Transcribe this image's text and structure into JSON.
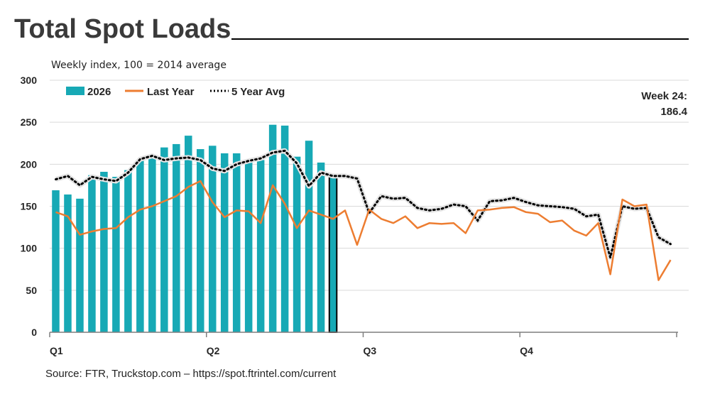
{
  "title": "Total Spot Loads",
  "subtitle": "Weekly index, 100 = 2014 average",
  "source": "Source: FTR, Truckstop.com – https://spot.ftrintel.com/current",
  "callout": {
    "line1": "Week 24:",
    "line2": "186.4"
  },
  "legend": {
    "bars": "2026",
    "last_year": "Last Year",
    "avg": "5 Year Avg"
  },
  "colors": {
    "bars": "#17a9b5",
    "last_year": "#ed7d31",
    "avg": "#000000",
    "grid": "#d9d9d9",
    "axis": "#7f7f7f"
  },
  "chart_data": {
    "type": "bar+line",
    "title": "Total Spot Loads",
    "subtitle": "Weekly index, 100 = 2014 average",
    "ylim": [
      0,
      300
    ],
    "yticks": [
      0,
      50,
      100,
      150,
      200,
      250,
      300
    ],
    "x_weeks": 52,
    "quarter_labels": [
      "Q1",
      "Q2",
      "Q3",
      "Q4"
    ],
    "quarter_start_weeks": [
      1,
      14,
      27,
      40
    ],
    "grid": "horizontal",
    "legend_position": "top-left",
    "series": [
      {
        "name": "2026",
        "type": "bar",
        "values": [
          169,
          164,
          159,
          187,
          191,
          185,
          193,
          204,
          208,
          220,
          224,
          234,
          218,
          222,
          213,
          213,
          205,
          205,
          247,
          246,
          209,
          228,
          202,
          186.4
        ]
      },
      {
        "name": "Last Year",
        "type": "line",
        "values": [
          143,
          138,
          116,
          120,
          123,
          124,
          137,
          146,
          150,
          156,
          162,
          173,
          180,
          155,
          137,
          145,
          144,
          130,
          175,
          153,
          124,
          145,
          140,
          135,
          145,
          104,
          146,
          135,
          130,
          138,
          124,
          130,
          129,
          130,
          118,
          145,
          146,
          148,
          149,
          143,
          141,
          131,
          133,
          121,
          115,
          130,
          69,
          158,
          150,
          152,
          62,
          86
        ]
      },
      {
        "name": "5 Year Avg",
        "type": "dotted-line",
        "values": [
          182,
          186,
          175,
          185,
          182,
          180,
          190,
          206,
          210,
          205,
          207,
          208,
          205,
          195,
          192,
          200,
          204,
          207,
          214,
          216,
          201,
          174,
          190,
          186,
          186,
          183,
          142,
          162,
          159,
          160,
          148,
          145,
          147,
          152,
          150,
          133,
          156,
          157,
          160,
          155,
          151,
          150,
          149,
          147,
          138,
          140,
          89,
          150,
          147,
          148,
          113,
          105
        ]
      }
    ]
  }
}
